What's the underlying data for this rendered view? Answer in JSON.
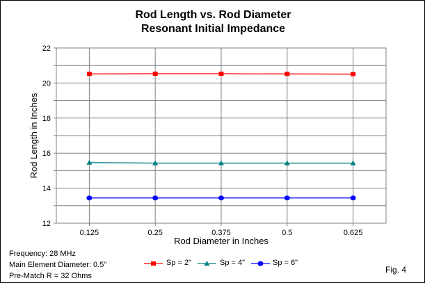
{
  "chart_data": {
    "type": "line",
    "title": "Rod Length vs. Rod Diameter",
    "subtitle": "Resonant Initial Impedance",
    "xlabel": "Rod Diameter in Inches",
    "ylabel": "Rod Length in Inches",
    "categories": [
      "0.125",
      "0.25",
      "0.375",
      "0.5",
      "0.625"
    ],
    "ylim": [
      12,
      22
    ],
    "yticks": [
      "12",
      "14",
      "16",
      "18",
      "20",
      "22"
    ],
    "grid": true,
    "legend_position": "bottom",
    "series": [
      {
        "name": "Sp = 2\"",
        "color": "#ff0000",
        "marker": "square",
        "values": [
          20.52,
          20.53,
          20.53,
          20.52,
          20.51
        ]
      },
      {
        "name": "Sp = 4\"",
        "color": "#008080",
        "marker": "triangle",
        "values": [
          15.46,
          15.43,
          15.43,
          15.43,
          15.43
        ]
      },
      {
        "name": "Sp = 6\"",
        "color": "#0000ff",
        "marker": "circle",
        "values": [
          13.44,
          13.44,
          13.44,
          13.44,
          13.44
        ]
      }
    ]
  },
  "notes": [
    "Frequency: 28 MHz",
    "Main Element Diameter: 0.5\"",
    "Pre-Match R = 32 Ohms"
  ],
  "fig_label": "Fig. 4"
}
